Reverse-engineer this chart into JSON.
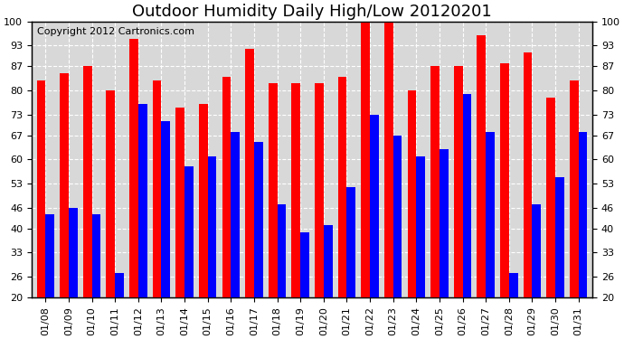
{
  "title": "Outdoor Humidity Daily High/Low 20120201",
  "copyright_text": "Copyright 2012 Cartronics.com",
  "dates": [
    "01/08",
    "01/09",
    "01/10",
    "01/11",
    "01/12",
    "01/13",
    "01/14",
    "01/15",
    "01/16",
    "01/17",
    "01/18",
    "01/19",
    "01/20",
    "01/21",
    "01/22",
    "01/23",
    "01/24",
    "01/25",
    "01/26",
    "01/27",
    "01/28",
    "01/29",
    "01/30",
    "01/31"
  ],
  "high": [
    83,
    85,
    87,
    80,
    95,
    83,
    75,
    76,
    84,
    92,
    82,
    82,
    82,
    84,
    100,
    100,
    80,
    87,
    87,
    96,
    88,
    91,
    78,
    83
  ],
  "low": [
    44,
    46,
    44,
    27,
    76,
    71,
    58,
    61,
    68,
    65,
    47,
    39,
    41,
    52,
    73,
    67,
    61,
    63,
    79,
    68,
    27,
    47,
    55,
    68
  ],
  "high_color": "#ff0000",
  "low_color": "#0000ff",
  "bg_color": "#ffffff",
  "plot_bg_color": "#d8d8d8",
  "grid_color": "#ffffff",
  "ylim_min": 20,
  "ylim_max": 100,
  "yticks": [
    20,
    26,
    33,
    40,
    46,
    53,
    60,
    67,
    73,
    80,
    87,
    93,
    100
  ],
  "title_fontsize": 13,
  "copyright_fontsize": 8,
  "tick_fontsize": 8,
  "bar_width": 0.38
}
